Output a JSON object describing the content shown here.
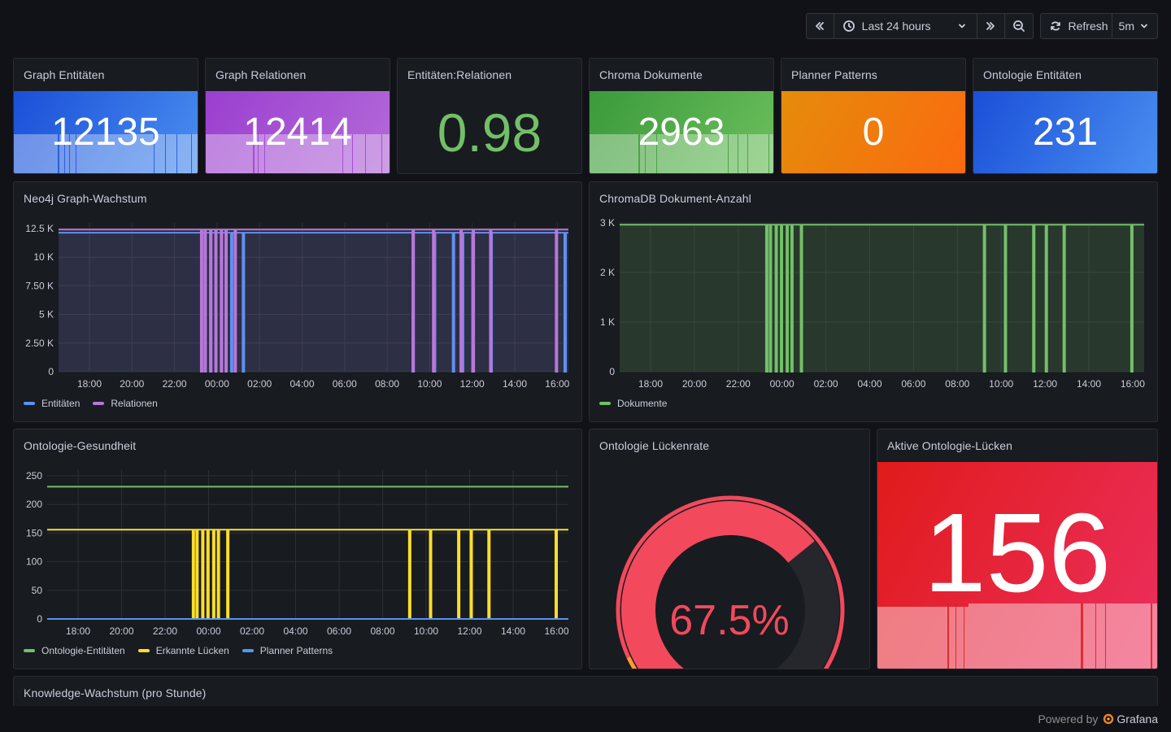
{
  "toolbar": {
    "time_range": "Last 24 hours",
    "refresh_label": "Refresh",
    "refresh_interval": "5m"
  },
  "stats": {
    "graph_entities": {
      "title": "Graph Entitäten",
      "value": "12135",
      "color_top": "#1f60c4",
      "color_bottom": "#3d71d9"
    },
    "graph_relations": {
      "title": "Graph Relationen",
      "value": "12414",
      "color_top": "#a352cc",
      "color_bottom": "#b877d9"
    },
    "ratio": {
      "title": "Entitäten:Relationen",
      "value": "0.98",
      "color": "#73bf69"
    },
    "chroma_docs": {
      "title": "Chroma Dokumente",
      "value": "2963",
      "color_top": "#37872d",
      "color_bottom": "#56a64b"
    },
    "planner_patterns": {
      "title": "Planner Patterns",
      "value": "0",
      "color_top": "#e0930b",
      "color_bottom": "#fa6400"
    },
    "ontology_entities": {
      "title": "Ontologie Entitäten",
      "value": "231",
      "color_top": "#1f60c4",
      "color_bottom": "#3274d9"
    }
  },
  "panels": {
    "neo4j": {
      "title": "Neo4j Graph-Wachstum"
    },
    "chroma": {
      "title": "ChromaDB Dokument-Anzahl"
    },
    "ontology_health": {
      "title": "Ontologie-Gesundheit"
    },
    "gap_rate": {
      "title": "Ontologie Lückenrate",
      "value": "67.5%"
    },
    "active_gaps": {
      "title": "Aktive Ontologie-Lücken",
      "value": "156"
    },
    "knowledge_growth": {
      "title": "Knowledge-Wachstum (pro Stunde)"
    }
  },
  "chart_data": [
    {
      "type": "line",
      "name": "neo4j",
      "x": [
        "18:00",
        "20:00",
        "22:00",
        "00:00",
        "02:00",
        "04:00",
        "06:00",
        "08:00",
        "10:00",
        "12:00",
        "14:00",
        "16:00"
      ],
      "yticks": [
        "0",
        "2.50 K",
        "5 K",
        "7.50 K",
        "10 K",
        "12.5 K"
      ],
      "ylim": [
        0,
        13000
      ],
      "series": [
        {
          "name": "Entitäten",
          "color": "#5794f2",
          "value": 12135
        },
        {
          "name": "Relationen",
          "color": "#b877d9",
          "value": 12414
        }
      ]
    },
    {
      "type": "line",
      "name": "chroma",
      "x": [
        "18:00",
        "20:00",
        "22:00",
        "00:00",
        "02:00",
        "04:00",
        "06:00",
        "08:00",
        "10:00",
        "12:00",
        "14:00",
        "16:00"
      ],
      "yticks": [
        "0",
        "1 K",
        "2 K",
        "3 K"
      ],
      "ylim": [
        0,
        3000
      ],
      "series": [
        {
          "name": "Dokumente",
          "color": "#73bf69",
          "value": 2963
        }
      ]
    },
    {
      "type": "line",
      "name": "ontology_health",
      "x": [
        "18:00",
        "20:00",
        "22:00",
        "00:00",
        "02:00",
        "04:00",
        "06:00",
        "08:00",
        "10:00",
        "12:00",
        "14:00",
        "16:00"
      ],
      "yticks": [
        "0",
        "50",
        "100",
        "150",
        "200",
        "250"
      ],
      "ylim": [
        0,
        260
      ],
      "series": [
        {
          "name": "Ontologie-Entitäten",
          "color": "#73bf69",
          "value": 231
        },
        {
          "name": "Erkannte Lücken",
          "color": "#fade2a",
          "value": 156
        },
        {
          "name": "Planner Patterns",
          "color": "#5794f2",
          "value": 0
        }
      ]
    },
    {
      "type": "gauge",
      "name": "gap_rate",
      "value": 67.5,
      "max": 100,
      "color": "#f2495c"
    }
  ],
  "footer": {
    "powered_by": "Powered by",
    "brand": "Grafana"
  }
}
